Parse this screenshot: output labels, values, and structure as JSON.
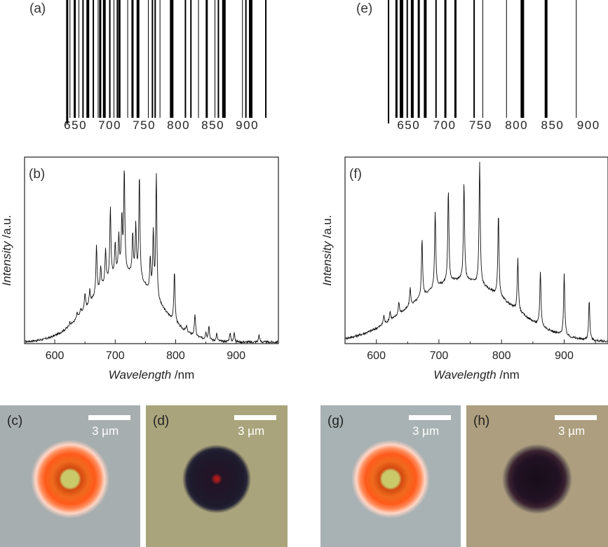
{
  "barcodes": [
    {
      "label": "(a)",
      "ticks": [
        "650",
        "700",
        "750",
        "800",
        "850",
        "900"
      ],
      "x_range": [
        630,
        930
      ],
      "lines": [
        {
          "nm": 638,
          "w": 3
        },
        {
          "nm": 642,
          "w": 1
        },
        {
          "nm": 649,
          "w": 3
        },
        {
          "nm": 655,
          "w": 1
        },
        {
          "nm": 661,
          "w": 2
        },
        {
          "nm": 668,
          "w": 4
        },
        {
          "nm": 676,
          "w": 2
        },
        {
          "nm": 683,
          "w": 1
        },
        {
          "nm": 686,
          "w": 3
        },
        {
          "nm": 692,
          "w": 4
        },
        {
          "nm": 700,
          "w": 2
        },
        {
          "nm": 706,
          "w": 1
        },
        {
          "nm": 711,
          "w": 2
        },
        {
          "nm": 714,
          "w": 3
        },
        {
          "nm": 726,
          "w": 1
        },
        {
          "nm": 733,
          "w": 3
        },
        {
          "nm": 741,
          "w": 4
        },
        {
          "nm": 756,
          "w": 1
        },
        {
          "nm": 762,
          "w": 2
        },
        {
          "nm": 766,
          "w": 2
        },
        {
          "nm": 773,
          "w": 1
        },
        {
          "nm": 790,
          "w": 5
        },
        {
          "nm": 810,
          "w": 2
        },
        {
          "nm": 818,
          "w": 2
        },
        {
          "nm": 829,
          "w": 1
        },
        {
          "nm": 841,
          "w": 3
        },
        {
          "nm": 853,
          "w": 1
        },
        {
          "nm": 858,
          "w": 2
        },
        {
          "nm": 866,
          "w": 5
        },
        {
          "nm": 893,
          "w": 1
        },
        {
          "nm": 898,
          "w": 2
        },
        {
          "nm": 905,
          "w": 5
        },
        {
          "nm": 927,
          "w": 2
        }
      ]
    },
    {
      "label": "(e)",
      "ticks": [
        "650",
        "700",
        "750",
        "800",
        "850",
        "900"
      ],
      "x_range": [
        620,
        930
      ],
      "lines": [
        {
          "nm": 622,
          "w": 2
        },
        {
          "nm": 633,
          "w": 3
        },
        {
          "nm": 640,
          "w": 5
        },
        {
          "nm": 648,
          "w": 2
        },
        {
          "nm": 655,
          "w": 4
        },
        {
          "nm": 664,
          "w": 3
        },
        {
          "nm": 673,
          "w": 4
        },
        {
          "nm": 688,
          "w": 2
        },
        {
          "nm": 701,
          "w": 3
        },
        {
          "nm": 715,
          "w": 3
        },
        {
          "nm": 741,
          "w": 2
        },
        {
          "nm": 753,
          "w": 1
        },
        {
          "nm": 786,
          "w": 1
        },
        {
          "nm": 808,
          "w": 5
        },
        {
          "nm": 841,
          "w": 4
        },
        {
          "nm": 883,
          "w": 1
        }
      ]
    }
  ],
  "chart_data": [
    {
      "type": "line",
      "panel_label": "(b)",
      "xlabel_italic": "Wavelength",
      "xlabel_unit": " /nm",
      "ylabel_italic": "Intensity",
      "ylabel_unit": " /a.u.",
      "xlim": [
        550,
        970
      ],
      "ylim": [
        0,
        1.02
      ],
      "xticks": [
        600,
        700,
        800,
        900
      ],
      "grid": false,
      "background": {
        "center": 715,
        "width": 75,
        "height": 0.38,
        "noise": 0.012
      },
      "peaks": [
        {
          "x": 625,
          "y": 0.02
        },
        {
          "x": 637,
          "y": 0.03
        },
        {
          "x": 643,
          "y": 0.03
        },
        {
          "x": 650,
          "y": 0.09
        },
        {
          "x": 658,
          "y": 0.07
        },
        {
          "x": 669,
          "y": 0.27
        },
        {
          "x": 676,
          "y": 0.12
        },
        {
          "x": 684,
          "y": 0.18
        },
        {
          "x": 692,
          "y": 0.39
        },
        {
          "x": 700,
          "y": 0.17
        },
        {
          "x": 706,
          "y": 0.2
        },
        {
          "x": 711,
          "y": 0.29
        },
        {
          "x": 715,
          "y": 0.56
        },
        {
          "x": 729,
          "y": 0.22
        },
        {
          "x": 734,
          "y": 0.27
        },
        {
          "x": 740,
          "y": 0.57
        },
        {
          "x": 758,
          "y": 0.18
        },
        {
          "x": 763,
          "y": 0.34
        },
        {
          "x": 768,
          "y": 0.68
        },
        {
          "x": 798,
          "y": 0.28
        },
        {
          "x": 818,
          "y": 0.03
        },
        {
          "x": 832,
          "y": 0.12
        },
        {
          "x": 850,
          "y": 0.04
        },
        {
          "x": 855,
          "y": 0.08
        },
        {
          "x": 868,
          "y": 0.04
        },
        {
          "x": 890,
          "y": 0.05
        },
        {
          "x": 897,
          "y": 0.05
        },
        {
          "x": 938,
          "y": 0.04
        }
      ]
    },
    {
      "type": "line",
      "panel_label": "(f)",
      "xlabel_italic": "Wavelength",
      "xlabel_unit": " /nm",
      "ylabel_italic": "Intensity",
      "ylabel_unit": " /a.u.",
      "xlim": [
        550,
        970
      ],
      "ylim": [
        0,
        1.02
      ],
      "xticks": [
        600,
        700,
        800,
        900
      ],
      "grid": false,
      "background": {
        "center": 735,
        "width": 110,
        "height": 0.34,
        "noise": 0.012
      },
      "peaks": [
        {
          "x": 612,
          "y": 0.05
        },
        {
          "x": 622,
          "y": 0.05
        },
        {
          "x": 636,
          "y": 0.07
        },
        {
          "x": 654,
          "y": 0.1
        },
        {
          "x": 673,
          "y": 0.32
        },
        {
          "x": 694,
          "y": 0.42
        },
        {
          "x": 715,
          "y": 0.5
        },
        {
          "x": 740,
          "y": 0.53
        },
        {
          "x": 765,
          "y": 0.67
        },
        {
          "x": 795,
          "y": 0.45
        },
        {
          "x": 826,
          "y": 0.29
        },
        {
          "x": 862,
          "y": 0.3
        },
        {
          "x": 900,
          "y": 0.34
        },
        {
          "x": 940,
          "y": 0.22
        }
      ]
    }
  ],
  "micrographs": [
    {
      "label": "(c)",
      "scale_text": "3 µm",
      "bg": "#a7aeaf",
      "type": "bright"
    },
    {
      "label": "(d)",
      "scale_text": "3 µm",
      "bg": "#a9a47b",
      "type": "dark-red"
    },
    {
      "label": "(g)",
      "scale_text": "3 µm",
      "bg": "#a8b1b3",
      "type": "bright"
    },
    {
      "label": "(h)",
      "scale_text": "3 µm",
      "bg": "#ac9e7e",
      "type": "dark"
    }
  ]
}
